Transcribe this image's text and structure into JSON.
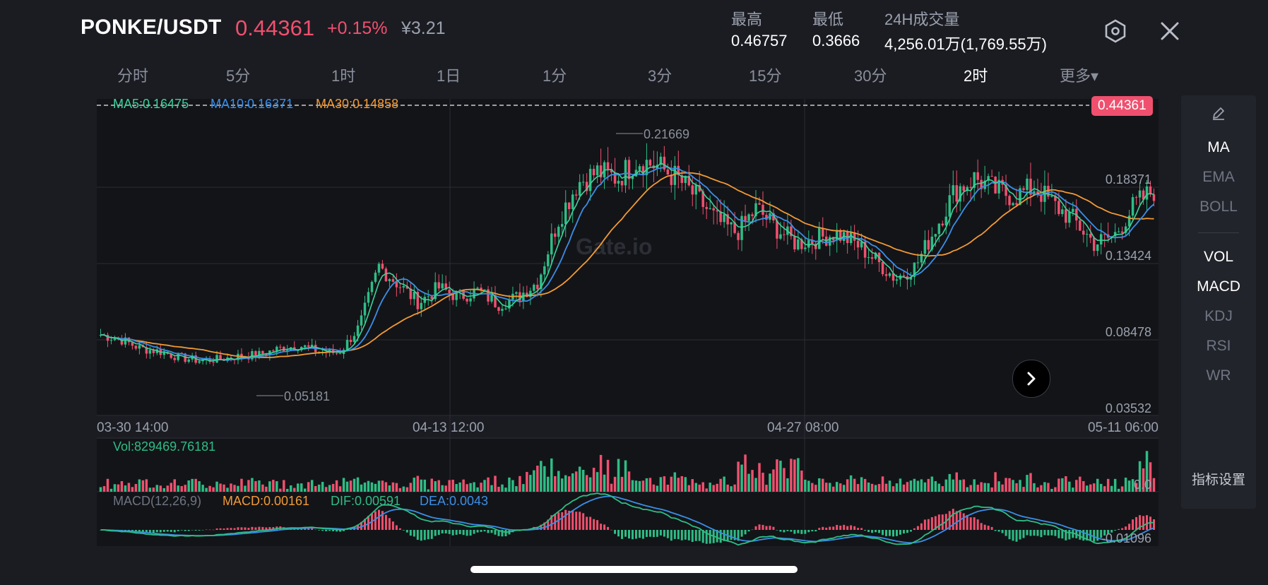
{
  "header": {
    "pair": "PONKE/USDT",
    "price": "0.44361",
    "change": "+0.15%",
    "cny_price": "¥3.21",
    "high_label": "最高",
    "high_value": "0.46757",
    "low_label": "最低",
    "low_value": "0.3666",
    "volume_label": "24H成交量",
    "volume_value": "4,256.01万(1,769.55万)",
    "settings_icon": "hexagon-settings-icon",
    "close_icon": "close-icon"
  },
  "tabs": [
    {
      "label": "分时"
    },
    {
      "label": "5分"
    },
    {
      "label": "1时"
    },
    {
      "label": "1日"
    },
    {
      "label": "1分"
    },
    {
      "label": "3分"
    },
    {
      "label": "15分"
    },
    {
      "label": "30分"
    },
    {
      "label": "2时",
      "active": true
    },
    {
      "label": "更多▾"
    }
  ],
  "indicators": {
    "ma5": "MA5:0.16475",
    "ma10": "MA10:0.16371",
    "ma30": "MA30:0.14858",
    "vol": "Vol:829469.76181",
    "macd_name": "MACD(12,26,9)",
    "macd_value": "MACD:0.00161",
    "dif": "DIF:0.00591",
    "dea": "DEA:0.0043"
  },
  "price_tag": "0.44361",
  "watermark": "Gate.io",
  "price_axis": [
    "0.18371",
    "0.13424",
    "0.08478",
    "0.03532"
  ],
  "annotations": {
    "max": "0.21669",
    "min": "0.05181"
  },
  "time_axis": [
    "03-30 14:00",
    "04-13 12:00",
    "04-27 08:00",
    "05-11 06:00"
  ],
  "vol_axis": "0.0",
  "macd_axis": "-0.01096",
  "colors": {
    "up": "#2ebd85",
    "down": "#f0506e",
    "ma5": "#3dd29b",
    "ma10": "#3a8fe8",
    "ma30": "#f29a35",
    "bg": "#1b1c22",
    "grid": "#2b2d35"
  },
  "right_panel": {
    "edit_icon": "pencil-icon",
    "main": [
      {
        "label": "MA",
        "on": true
      },
      {
        "label": "EMA"
      },
      {
        "label": "BOLL"
      }
    ],
    "sub": [
      {
        "label": "VOL",
        "on": true
      },
      {
        "label": "MACD",
        "on": true
      },
      {
        "label": "KDJ"
      },
      {
        "label": "RSI"
      },
      {
        "label": "WR"
      }
    ],
    "settings": "指标设置"
  },
  "chart_data": {
    "type": "candlestick",
    "x": [
      "03-30 14:00",
      "04-13 12:00",
      "04-27 08:00",
      "05-11 06:00"
    ],
    "series_close": [
      0.075,
      0.072,
      0.066,
      0.064,
      0.06,
      0.058,
      0.059,
      0.061,
      0.062,
      0.066,
      0.068,
      0.064,
      0.063,
      0.08,
      0.12,
      0.108,
      0.096,
      0.106,
      0.1,
      0.104,
      0.095,
      0.1,
      0.11,
      0.15,
      0.175,
      0.182,
      0.178,
      0.19,
      0.186,
      0.178,
      0.165,
      0.15,
      0.142,
      0.158,
      0.145,
      0.135,
      0.138,
      0.142,
      0.135,
      0.124,
      0.112,
      0.12,
      0.145,
      0.17,
      0.178,
      0.17,
      0.166,
      0.172,
      0.16,
      0.15,
      0.135,
      0.14,
      0.16,
      0.17
    ],
    "ylim": [
      0.03532,
      0.18371
    ],
    "series": [
      {
        "name": "MA5",
        "value": 0.16475
      },
      {
        "name": "MA10",
        "value": 0.16371
      },
      {
        "name": "MA30",
        "value": 0.14858
      }
    ],
    "last_price": 0.44361,
    "high_mark": 0.21669,
    "low_mark": 0.05181
  }
}
